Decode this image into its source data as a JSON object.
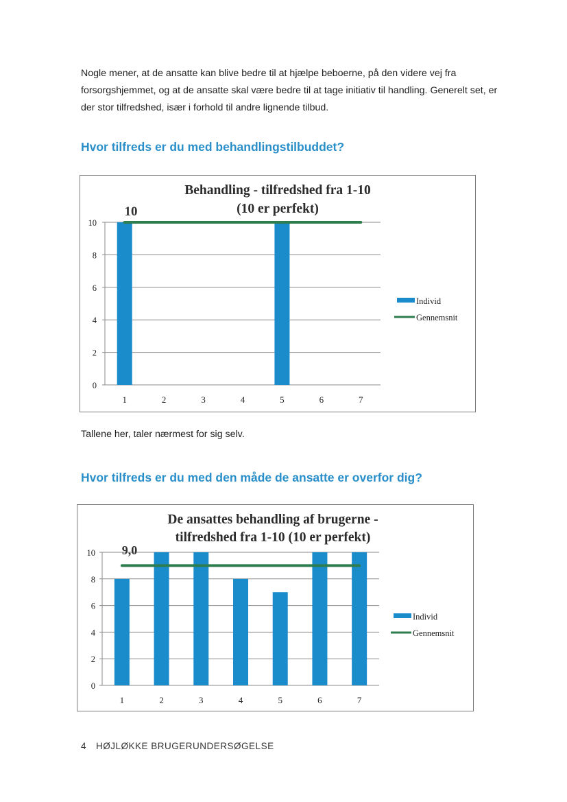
{
  "intro_text": "Nogle mener, at de ansatte kan blive bedre til at hjælpe beboerne, på den videre vej fra forsorgshjemmet, og at de ansatte skal være bedre til at tage initiativ til handling. Generelt set, er der stor tilfredshed, især i forhold til andre lignende tilbud.",
  "heading1": "Hvor tilfreds er du med behandlingstilbuddet?",
  "paragraph_between": "Tallene her, taler nærmest for sig selv.",
  "heading2": "Hvor tilfreds er du med den måde de ansatte er overfor dig?",
  "footer": {
    "page_number": "4",
    "title": "HØJLØKKE BRUGERUNDERSØGELSE"
  },
  "colors": {
    "bar": "#1a8ccb",
    "average": "#2e7d4f",
    "heading": "#2a8fc9"
  },
  "chart_data": [
    {
      "type": "bar",
      "title_lines": [
        "Behandling - tilfredshed fra 1-10",
        "(10 er perfekt)"
      ],
      "categories": [
        "1",
        "2",
        "3",
        "4",
        "5",
        "6",
        "7"
      ],
      "series": [
        {
          "name": "Individ",
          "type": "bar",
          "values": [
            10,
            0,
            0,
            0,
            10,
            0,
            0
          ]
        },
        {
          "name": "Gennemsnit",
          "type": "line",
          "values": [
            10,
            10,
            10,
            10,
            10,
            10,
            10
          ]
        }
      ],
      "average_label": "10",
      "ylim": [
        0,
        10
      ],
      "yticks": [
        "0",
        "2",
        "4",
        "6",
        "8",
        "10"
      ],
      "grid": true,
      "legend": "right"
    },
    {
      "type": "bar",
      "title_lines": [
        "De ansattes behandling af brugerne -",
        "tilfredshed fra 1-10 (10 er perfekt)"
      ],
      "categories": [
        "1",
        "2",
        "3",
        "4",
        "5",
        "6",
        "7"
      ],
      "series": [
        {
          "name": "Individ",
          "type": "bar",
          "values": [
            8,
            10,
            10,
            8,
            7,
            10,
            10
          ]
        },
        {
          "name": "Gennemsnit",
          "type": "line",
          "values": [
            9,
            9,
            9,
            9,
            9,
            9,
            9
          ]
        }
      ],
      "average_label": "9,0",
      "ylim": [
        0,
        10
      ],
      "yticks": [
        "0",
        "2",
        "4",
        "6",
        "8",
        "10"
      ],
      "grid": true,
      "legend": "right"
    }
  ]
}
